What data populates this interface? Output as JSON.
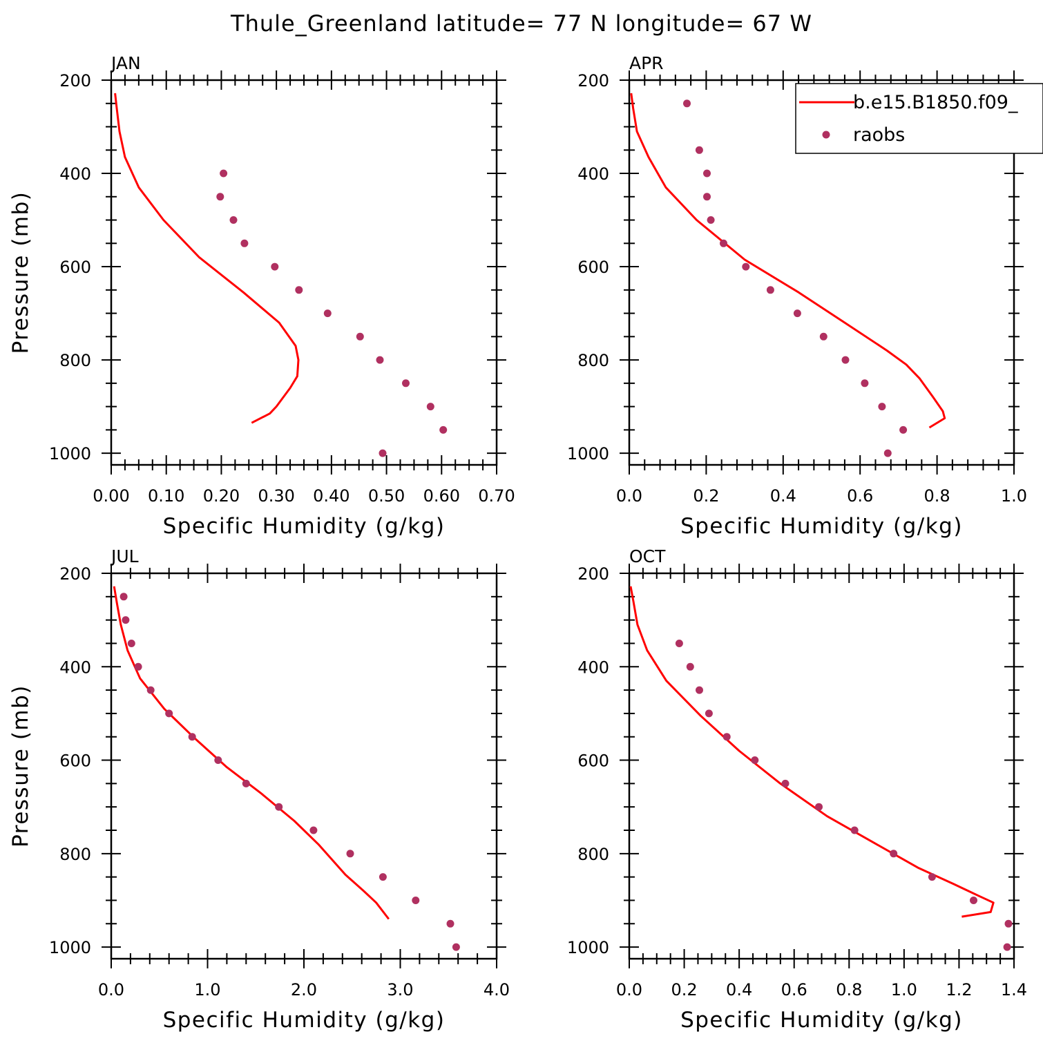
{
  "title": "Thule_Greenland  latitude= 77 N longitude= 67 W",
  "colors": {
    "model": "#ff0000",
    "obs": "#b03060"
  },
  "legend": {
    "placement": "top-right",
    "entries": [
      {
        "label": "b.e15.B1850.f09_",
        "style": "line"
      },
      {
        "label": "raobs",
        "style": "marker"
      }
    ]
  },
  "chart_data": [
    {
      "type": "line",
      "title": "JAN",
      "xlabel": "Specific Humidity (g/kg)",
      "ylabel": "Pressure (mb)",
      "xlim": [
        0,
        0.7
      ],
      "ylim": [
        200,
        1025
      ],
      "y_inverted": true,
      "xticks": [
        "0.00",
        "0.10",
        "0.20",
        "0.30",
        "0.40",
        "0.50",
        "0.60",
        "0.70"
      ],
      "yticks": [
        "200",
        "400",
        "600",
        "800",
        "1000"
      ],
      "series": [
        {
          "name": "b.e15.B1850.f09_",
          "style": "line",
          "x": [
            0.007,
            0.01,
            0.015,
            0.025,
            0.05,
            0.095,
            0.16,
            0.24,
            0.305,
            0.335,
            0.34,
            0.338,
            0.325,
            0.3,
            0.288,
            0.255
          ],
          "y": [
            228,
            260,
            310,
            365,
            430,
            500,
            580,
            655,
            720,
            770,
            800,
            835,
            860,
            900,
            915,
            935
          ]
        },
        {
          "name": "raobs",
          "style": "marker",
          "x": [
            0.204,
            0.198,
            0.222,
            0.242,
            0.297,
            0.341,
            0.393,
            0.452,
            0.488,
            0.535,
            0.58,
            0.603,
            0.493
          ],
          "y": [
            400,
            450,
            500,
            550,
            600,
            650,
            700,
            750,
            800,
            850,
            900,
            950,
            1000
          ]
        }
      ]
    },
    {
      "type": "line",
      "title": "APR",
      "xlabel": "Specific Humidity (g/kg)",
      "ylabel": "",
      "xlim": [
        0,
        1.0
      ],
      "ylim": [
        200,
        1025
      ],
      "y_inverted": true,
      "xticks": [
        "0.0",
        "0.2",
        "0.4",
        "0.6",
        "0.8",
        "1.0"
      ],
      "yticks": [
        "200",
        "400",
        "600",
        "800",
        "1000"
      ],
      "series": [
        {
          "name": "b.e15.B1850.f09_",
          "style": "line",
          "x": [
            0.005,
            0.01,
            0.02,
            0.05,
            0.095,
            0.175,
            0.3,
            0.44,
            0.56,
            0.67,
            0.72,
            0.755,
            0.79,
            0.815,
            0.82,
            0.78
          ],
          "y": [
            228,
            260,
            310,
            365,
            430,
            500,
            585,
            655,
            720,
            780,
            810,
            840,
            880,
            910,
            925,
            945
          ]
        },
        {
          "name": "raobs",
          "style": "marker",
          "x": [
            0.15,
            0.182,
            0.202,
            0.202,
            0.212,
            0.245,
            0.303,
            0.367,
            0.437,
            0.505,
            0.562,
            0.612,
            0.657,
            0.712,
            0.672
          ],
          "y": [
            250,
            350,
            400,
            450,
            500,
            550,
            600,
            650,
            700,
            750,
            800,
            850,
            900,
            950,
            1000
          ]
        }
      ]
    },
    {
      "type": "line",
      "title": "JUL",
      "xlabel": "Specific Humidity (g/kg)",
      "ylabel": "Pressure (mb)",
      "xlim": [
        0,
        4.0
      ],
      "ylim": [
        200,
        1025
      ],
      "y_inverted": true,
      "xticks": [
        "0.0",
        "1.0",
        "2.0",
        "3.0",
        "4.0"
      ],
      "yticks": [
        "200",
        "400",
        "600",
        "800",
        "1000"
      ],
      "series": [
        {
          "name": "b.e15.B1850.f09_",
          "style": "line",
          "x": [
            0.03,
            0.06,
            0.1,
            0.17,
            0.3,
            0.55,
            0.85,
            1.2,
            1.55,
            1.9,
            2.15,
            2.43,
            2.62,
            2.75,
            2.88
          ],
          "y": [
            228,
            265,
            310,
            365,
            425,
            490,
            550,
            615,
            670,
            730,
            780,
            845,
            880,
            905,
            940
          ]
        },
        {
          "name": "raobs",
          "style": "marker",
          "x": [
            0.13,
            0.15,
            0.21,
            0.28,
            0.41,
            0.6,
            0.84,
            1.11,
            1.4,
            1.74,
            2.1,
            2.48,
            2.82,
            3.16,
            3.52,
            3.58
          ],
          "y": [
            250,
            300,
            350,
            400,
            450,
            500,
            550,
            600,
            650,
            700,
            750,
            800,
            850,
            900,
            950,
            1000
          ]
        }
      ]
    },
    {
      "type": "line",
      "title": "OCT",
      "xlabel": "Specific Humidity (g/kg)",
      "ylabel": "",
      "xlim": [
        0,
        1.4
      ],
      "ylim": [
        200,
        1025
      ],
      "y_inverted": true,
      "xticks": [
        "0.0",
        "0.2",
        "0.4",
        "0.6",
        "0.8",
        "1.0",
        "1.2",
        "1.4"
      ],
      "yticks": [
        "200",
        "400",
        "600",
        "800",
        "1000"
      ],
      "series": [
        {
          "name": "b.e15.B1850.f09_",
          "style": "line",
          "x": [
            0.005,
            0.015,
            0.03,
            0.065,
            0.135,
            0.26,
            0.4,
            0.55,
            0.72,
            0.9,
            1.05,
            1.18,
            1.27,
            1.325,
            1.315,
            1.21
          ],
          "y": [
            228,
            260,
            310,
            365,
            430,
            505,
            580,
            650,
            720,
            780,
            830,
            865,
            890,
            905,
            925,
            935
          ]
        },
        {
          "name": "raobs",
          "style": "marker",
          "x": [
            0.182,
            0.222,
            0.255,
            0.29,
            0.355,
            0.457,
            0.568,
            0.69,
            0.82,
            0.962,
            1.102,
            1.253,
            1.38,
            1.375
          ],
          "y": [
            350,
            400,
            450,
            500,
            550,
            600,
            650,
            700,
            750,
            800,
            850,
            900,
            950,
            1000
          ]
        }
      ]
    }
  ]
}
